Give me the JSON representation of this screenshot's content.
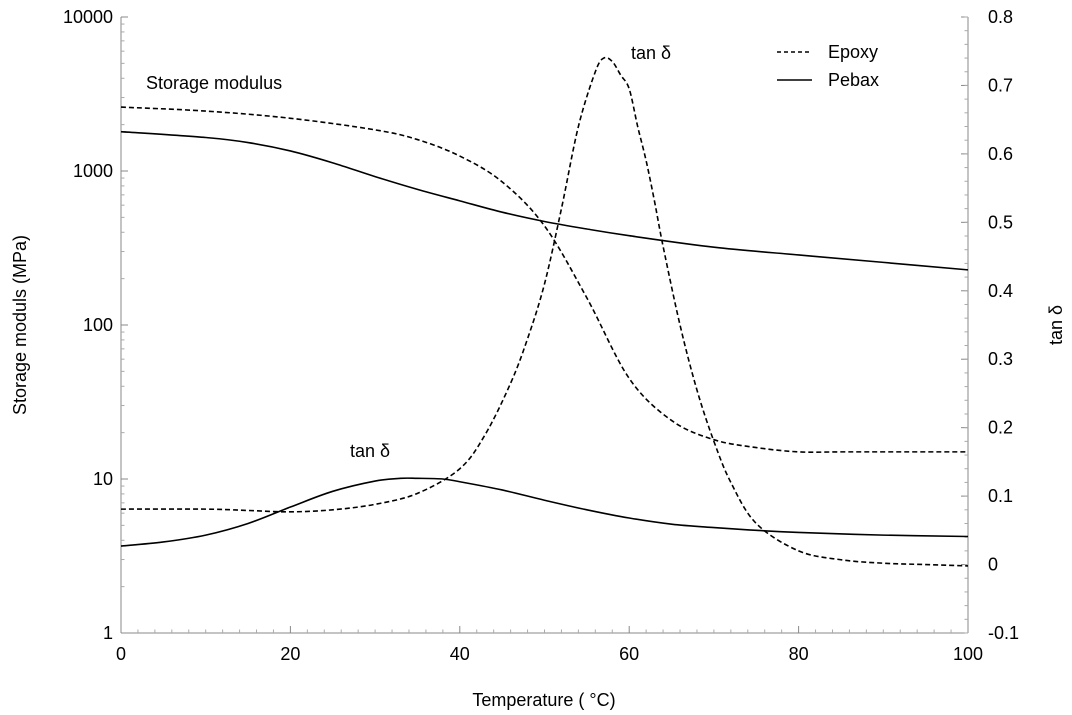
{
  "chart_data": {
    "type": "line",
    "xlabel": "Temperature ( °C)",
    "ylabel_left": "Storage moduls (MPa)",
    "ylabel_right": "tan δ",
    "x_ticks": [
      "0",
      "20",
      "40",
      "60",
      "80",
      "100"
    ],
    "y_left_ticks": [
      "1",
      "10",
      "100",
      "1000",
      "10000"
    ],
    "y_right_ticks": [
      "-0.1",
      "0",
      "0.1",
      "0.2",
      "0.3",
      "0.4",
      "0.5",
      "0.6",
      "0.7",
      "0.8"
    ],
    "xlim": [
      0,
      100
    ],
    "ylim_left": [
      1,
      10000
    ],
    "y_left_scale": "log",
    "ylim_right": [
      -0.1,
      0.8
    ],
    "grid": false,
    "legend": {
      "position": "top-right",
      "entries": [
        {
          "label": "Epoxy",
          "style": "dashed"
        },
        {
          "label": "Pebax",
          "style": "solid"
        }
      ]
    },
    "annotations": [
      "Storage modulus",
      "tan δ",
      "tan δ"
    ],
    "series": [
      {
        "name": "Epoxy",
        "quantity": "storage modulus",
        "axis": "left",
        "style": "dashed",
        "x": [
          0,
          10,
          20,
          30,
          35,
          40,
          45,
          50,
          55,
          60,
          65,
          70,
          75,
          80,
          85,
          90,
          100
        ],
        "y": [
          2600,
          2450,
          2200,
          1850,
          1600,
          1250,
          850,
          440,
          150,
          45,
          24,
          18,
          16,
          15,
          15,
          15,
          15
        ]
      },
      {
        "name": "Pebax",
        "quantity": "storage modulus",
        "axis": "left",
        "style": "solid",
        "x": [
          0,
          10,
          15,
          20,
          25,
          30,
          35,
          40,
          45,
          50,
          55,
          60,
          70,
          80,
          90,
          100
        ],
        "y": [
          1800,
          1650,
          1530,
          1350,
          1130,
          920,
          760,
          640,
          540,
          470,
          420,
          380,
          320,
          285,
          255,
          228
        ]
      },
      {
        "name": "Epoxy",
        "quantity": "tan δ",
        "axis": "right",
        "style": "dashed",
        "x": [
          0,
          10,
          15,
          20,
          25,
          30,
          35,
          40,
          43,
          46,
          48,
          50,
          52,
          54,
          56,
          57,
          58,
          59,
          60,
          61,
          62,
          63,
          64,
          66,
          68,
          70,
          72,
          75,
          80,
          85,
          90,
          95,
          100
        ],
        "y": [
          0.081,
          0.081,
          0.079,
          0.077,
          0.08,
          0.088,
          0.104,
          0.14,
          0.19,
          0.265,
          0.33,
          0.41,
          0.52,
          0.64,
          0.72,
          0.74,
          0.735,
          0.715,
          0.695,
          0.64,
          0.59,
          0.53,
          0.465,
          0.35,
          0.255,
          0.18,
          0.12,
          0.06,
          0.02,
          0.007,
          0.002,
          0.0,
          -0.002
        ]
      },
      {
        "name": "Pebax",
        "quantity": "tan δ",
        "axis": "right",
        "style": "solid",
        "x": [
          0,
          5,
          10,
          15,
          20,
          25,
          30,
          33,
          35,
          38,
          40,
          45,
          50,
          55,
          60,
          65,
          70,
          75,
          80,
          90,
          100
        ],
        "y": [
          0.027,
          0.033,
          0.043,
          0.06,
          0.084,
          0.107,
          0.122,
          0.126,
          0.126,
          0.125,
          0.121,
          0.109,
          0.094,
          0.08,
          0.068,
          0.059,
          0.054,
          0.05,
          0.047,
          0.043,
          0.041
        ]
      }
    ]
  }
}
